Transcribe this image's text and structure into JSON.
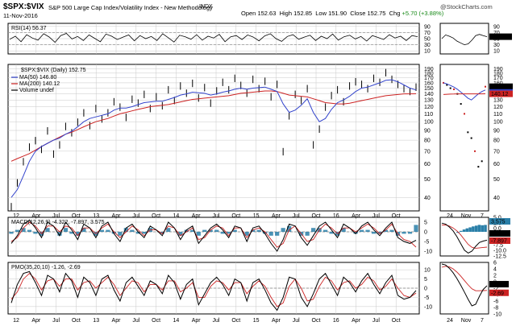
{
  "header": {
    "symbol": "$SPX:$VIX",
    "name": "S&P 500 Large Cap Index/Volatility Index - New Methodology",
    "exchange": "INDX",
    "date": "11-Nov-2016",
    "open_label": "Open",
    "open": "152.63",
    "high_label": "High",
    "high": "152.85",
    "low_label": "Low",
    "low": "151.90",
    "close_label": "Close",
    "close": "152.75",
    "chg_label": "Chg",
    "chg": "+5.70 (+3.88%)",
    "watermark": "@StockCharts.com"
  },
  "colors": {
    "price_bars": "#000000",
    "ma50": "#3344cc",
    "ma200": "#cc2222",
    "macd_hist": "#2a7fa8",
    "macd_signal": "#cc2222",
    "grid": "#c8c8c8",
    "frame": "#000000"
  },
  "chart_data": [
    {
      "type": "line",
      "panel": "rsi",
      "title": "RSI(14) 56.37",
      "ylim": [
        0,
        100
      ],
      "reference_levels": [
        30,
        70
      ],
      "right_ticks": [
        "90",
        "70",
        "50",
        "30",
        "10"
      ],
      "value_badge": "56.37",
      "series": [
        {
          "name": "RSI(14)",
          "values": [
            48,
            58,
            40,
            63,
            52,
            45,
            66,
            55,
            38,
            60,
            67,
            49,
            57,
            44,
            62,
            51,
            40,
            65,
            58,
            47,
            55,
            62,
            43,
            60,
            50,
            57,
            44,
            66,
            53,
            39,
            61,
            56,
            48,
            63,
            45,
            58,
            52,
            64,
            40,
            56,
            60,
            47,
            62,
            55,
            43,
            59,
            66,
            50,
            41,
            57,
            63,
            48,
            55,
            61,
            44,
            58,
            50,
            65,
            45,
            56,
            61,
            49,
            57,
            42,
            60,
            54,
            47,
            63,
            52,
            58,
            44,
            60,
            56.37
          ]
        }
      ],
      "zoom_values": [
        50,
        62,
        58,
        52,
        42,
        36,
        30,
        33,
        45,
        60,
        64,
        60,
        56.37
      ]
    },
    {
      "type": "line",
      "panel": "price",
      "title": "$SPX:$VIX (Daily) 152.75",
      "legend": [
        {
          "label": "MA(50) 146.80",
          "color": "#3344cc"
        },
        {
          "label": "MA(200) 140.12",
          "color": "#cc2222"
        },
        {
          "label": "Volume undef",
          "color": "#000000"
        }
      ],
      "y_scale": "log",
      "ylim": [
        34,
        200
      ],
      "right_ticks": [
        "190",
        "180",
        "170",
        "160",
        "150",
        "140",
        "130",
        "120",
        "110",
        "100",
        "90",
        "80",
        "70",
        "60",
        "50",
        "40"
      ],
      "value_badges": [
        "152.75",
        "146.80",
        "140.12"
      ],
      "x_labels": [
        "12",
        "Apr",
        "Jul",
        "Oct",
        "13",
        "Apr",
        "Jul",
        "Oct",
        "14",
        "Apr",
        "Jul",
        "Oct",
        "15",
        "Apr",
        "Jul",
        "Oct",
        "16",
        "Apr",
        "Jul",
        "Oct"
      ],
      "series": [
        {
          "name": "$SPX:$VIX",
          "values": [
            36,
            48,
            62,
            74,
            80,
            72,
            90,
            68,
            76,
            95,
            88,
            100,
            112,
            96,
            118,
            104,
            112,
            128,
            120,
            106,
            132,
            126,
            140,
            118,
            136,
            122,
            148,
            130,
            155,
            142,
            160,
            134,
            152,
            126,
            146,
            162,
            148,
            170,
            156,
            142,
            168,
            150,
            164,
            136,
            158,
            70,
            108,
            140,
            130,
            150,
            76,
            92,
            120,
            138,
            148,
            128,
            155,
            163,
            158,
            150,
            170,
            162,
            182,
            168,
            158,
            150,
            145,
            152.75
          ]
        },
        {
          "name": "MA(50)",
          "values": [
            40,
            44,
            52,
            62,
            70,
            74,
            77,
            80,
            82,
            86,
            89,
            94,
            100,
            104,
            106,
            108,
            110,
            115,
            118,
            118,
            120,
            123,
            126,
            127,
            128,
            128,
            131,
            134,
            138,
            140,
            143,
            142,
            141,
            138,
            140,
            143,
            145,
            148,
            150,
            148,
            150,
            151,
            152,
            148,
            144,
            124,
            112,
            115,
            122,
            132,
            112,
            100,
            104,
            116,
            126,
            130,
            136,
            144,
            150,
            152,
            156,
            160,
            165,
            166,
            162,
            156,
            150,
            146.8
          ]
        },
        {
          "name": "MA(200)",
          "values": [
            62,
            64,
            66,
            68,
            71,
            74,
            77,
            80,
            83,
            86,
            88,
            91,
            94,
            97,
            100,
            102,
            104,
            107,
            110,
            112,
            114,
            116,
            118,
            120,
            121,
            122,
            123,
            125,
            127,
            129,
            131,
            132,
            133,
            134,
            135,
            136,
            137,
            139,
            141,
            142,
            143,
            144,
            145,
            145,
            144,
            141,
            138,
            137,
            136,
            135,
            132,
            129,
            126,
            125,
            124,
            124,
            125,
            127,
            129,
            131,
            133,
            135,
            137,
            138,
            139,
            140,
            140,
            140.12
          ]
        }
      ],
      "zoom_values": [
        160,
        156,
        150,
        148,
        140,
        124,
        110,
        88,
        82,
        70,
        58,
        62,
        152.75
      ]
    },
    {
      "type": "line",
      "panel": "macd",
      "title": "MACD(12,26,9) -4.322, -7.897, 3.575",
      "ylim": [
        -12.5,
        7.5
      ],
      "reference_levels": [
        0
      ],
      "right_ticks": [
        "5",
        "0",
        "-5",
        "-10"
      ],
      "zoom_ticks": [
        "5.0",
        "2.5",
        "0.0",
        "-2.5",
        "-5.0",
        "-7.5",
        "-10.0",
        "-12.5"
      ],
      "value_badges": [
        "3.575",
        "-4.322",
        "-7.897"
      ],
      "series": [
        {
          "name": "MACD",
          "values": [
            -6,
            -2,
            4,
            6,
            2,
            -3,
            5,
            3,
            -2,
            5,
            1,
            -4,
            4,
            2,
            -3,
            3,
            5,
            -1,
            -5,
            2,
            4,
            0,
            -3,
            3,
            1,
            -2,
            5,
            2,
            -4,
            1,
            3,
            -6,
            -2,
            2,
            4,
            1,
            -3,
            3,
            2,
            -5,
            2,
            3,
            -1,
            -6,
            -10,
            -4,
            4,
            3,
            -3,
            -7,
            -2,
            3,
            5,
            1,
            -3,
            4,
            2,
            -1,
            3,
            5,
            1,
            -2,
            2,
            5,
            -3,
            -5,
            -6,
            -4.322
          ]
        },
        {
          "name": "Signal",
          "values": [
            -5,
            -3,
            2,
            5,
            3,
            -1,
            3,
            3,
            0,
            3,
            2,
            -2,
            2,
            2,
            -1,
            2,
            4,
            0,
            -3,
            0,
            3,
            1,
            -2,
            1,
            1,
            -1,
            3,
            2,
            -2,
            0,
            2,
            -4,
            -3,
            1,
            3,
            2,
            -2,
            2,
            2,
            -3,
            1,
            2,
            0,
            -4,
            -8,
            -6,
            1,
            3,
            -1,
            -5,
            -4,
            1,
            4,
            2,
            -1,
            2,
            2,
            0,
            2,
            4,
            2,
            -1,
            1,
            4,
            -1,
            -4,
            -5,
            -7.897
          ]
        }
      ],
      "histogram": [
        -1,
        1,
        2,
        1,
        -1,
        -2,
        2,
        0,
        -2,
        2,
        -1,
        -2,
        2,
        0,
        -2,
        1,
        1,
        -1,
        -2,
        2,
        1,
        -1,
        -1,
        2,
        0,
        -1,
        2,
        0,
        -2,
        1,
        1,
        -2,
        1,
        1,
        1,
        -1,
        -1,
        1,
        0,
        -2,
        1,
        1,
        -1,
        -2,
        -2,
        2,
        3,
        0,
        -2,
        -2,
        2,
        2,
        1,
        -1,
        -2,
        2,
        0,
        -1,
        1,
        1,
        -1,
        -1,
        1,
        1,
        -2,
        -1,
        -1,
        3.575
      ],
      "zoom_values": [
        4.5,
        4,
        2.5,
        0.5,
        -2.5,
        -6,
        -9.5,
        -11,
        -10,
        -7.5,
        -5.5,
        -4.8,
        -4.322
      ]
    },
    {
      "type": "line",
      "panel": "pmo",
      "title": "PMO(35,20,10) -1.26, -2.69",
      "ylim": [
        -14,
        14
      ],
      "reference_levels": [
        0
      ],
      "right_ticks": [
        "10",
        "5",
        "0",
        "-5",
        "-10"
      ],
      "zoom_ticks": [
        "6",
        "4",
        "2",
        "0",
        "-2",
        "-4",
        "-6",
        "-8",
        "-10"
      ],
      "value_badges": [
        "-1.26",
        "-2.69"
      ],
      "series": [
        {
          "name": "PMO",
          "values": [
            -8,
            2,
            8,
            9,
            3,
            -4,
            7,
            5,
            -2,
            8,
            4,
            -5,
            6,
            3,
            -4,
            5,
            7,
            -1,
            -7,
            3,
            6,
            1,
            -4,
            4,
            2,
            -3,
            7,
            3,
            -6,
            2,
            5,
            -9,
            -3,
            3,
            6,
            2,
            -4,
            5,
            3,
            -7,
            3,
            5,
            -1,
            -8,
            -12,
            -5,
            6,
            5,
            -5,
            -10,
            -3,
            5,
            8,
            2,
            -4,
            6,
            3,
            -2,
            4,
            8,
            2,
            -3,
            3,
            7,
            -4,
            -6,
            -5,
            -1.26
          ]
        },
        {
          "name": "Signal",
          "values": [
            -6,
            -2,
            5,
            8,
            5,
            -1,
            4,
            5,
            1,
            5,
            5,
            -1,
            3,
            4,
            0,
            3,
            6,
            2,
            -4,
            0,
            4,
            3,
            -2,
            2,
            2,
            -1,
            4,
            4,
            -2,
            0,
            3,
            -5,
            -5,
            1,
            4,
            3,
            -1,
            3,
            3,
            -3,
            1,
            4,
            1,
            -5,
            -10,
            -8,
            1,
            5,
            0,
            -7,
            -6,
            1,
            6,
            4,
            -1,
            3,
            4,
            0,
            2,
            6,
            4,
            -1,
            1,
            5,
            0,
            -4,
            -5,
            -2.69
          ]
        }
      ],
      "zoom_values": [
        5.5,
        5.2,
        4.2,
        2.8,
        1,
        -1,
        -3.2,
        -5.5,
        -7.5,
        -7,
        -4.5,
        -2.4,
        -1.26
      ]
    }
  ],
  "zoom_x_labels": [
    "24",
    "Nov",
    "7"
  ]
}
